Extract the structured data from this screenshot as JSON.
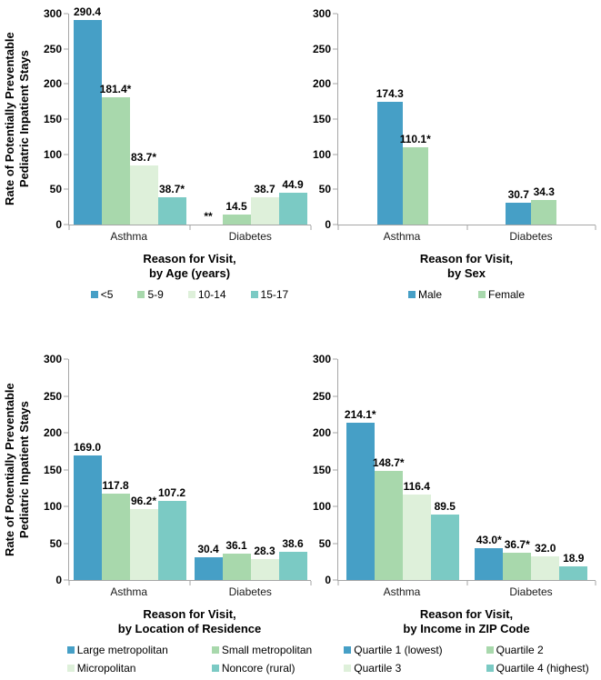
{
  "style": {
    "background": "#FFFFFF",
    "axis_color": "#A6A6A6",
    "label_color": "#000000",
    "series_colors": [
      "#469FC6",
      "#A8D8AC",
      "#DEF0DA",
      "#7BCAC4"
    ]
  },
  "chart_data": [
    {
      "type": "bar",
      "id": "by-age",
      "title": "",
      "ylabel_lines": [
        "Rate of Potentially Preventable",
        "Pediatric Inpatient Stays"
      ],
      "xlabel_lines": [
        "Reason for Visit,",
        "by Age (years)"
      ],
      "categories": [
        "Asthma",
        "Diabetes"
      ],
      "ylim": [
        0,
        300
      ],
      "yticks": [
        0,
        50,
        100,
        150,
        200,
        250,
        300
      ],
      "legend_layout": "row",
      "legend_position": "bottom",
      "grid": false,
      "series": [
        {
          "name": "<5",
          "color": "#469FC6",
          "values": [
            290.4,
            null
          ],
          "labels": [
            "290.4",
            "**"
          ]
        },
        {
          "name": "5-9",
          "color": "#A8D8AC",
          "values": [
            181.4,
            14.5
          ],
          "labels": [
            "181.4*",
            "14.5"
          ]
        },
        {
          "name": "10-14",
          "color": "#DEF0DA",
          "values": [
            83.7,
            38.7
          ],
          "labels": [
            "83.7*",
            "38.7"
          ]
        },
        {
          "name": "15-17",
          "color": "#7BCAC4",
          "values": [
            38.7,
            44.9
          ],
          "labels": [
            "38.7*",
            "44.9"
          ]
        }
      ]
    },
    {
      "type": "bar",
      "id": "by-sex",
      "title": "",
      "xlabel_lines": [
        "Reason for Visit,",
        "by Sex"
      ],
      "categories": [
        "Asthma",
        "Diabetes"
      ],
      "ylim": [
        0,
        300
      ],
      "yticks": [
        0,
        50,
        100,
        150,
        200,
        250,
        300
      ],
      "legend_layout": "row",
      "legend_position": "bottom",
      "grid": false,
      "series": [
        {
          "name": "Male",
          "color": "#469FC6",
          "values": [
            174.3,
            30.7
          ],
          "labels": [
            "174.3",
            "30.7"
          ]
        },
        {
          "name": "Female",
          "color": "#A8D8AC",
          "values": [
            110.1,
            34.3
          ],
          "labels": [
            "110.1*",
            "34.3"
          ]
        }
      ]
    },
    {
      "type": "bar",
      "id": "by-location-of-residence",
      "title": "",
      "ylabel_lines": [
        "Rate of Potentially Preventable",
        "Pediatric Inpatient Stays"
      ],
      "xlabel_lines": [
        "Reason for Visit,",
        "by Location of Residence"
      ],
      "categories": [
        "Asthma",
        "Diabetes"
      ],
      "ylim": [
        0,
        300
      ],
      "yticks": [
        0,
        50,
        100,
        150,
        200,
        250,
        300
      ],
      "legend_layout": "grid",
      "legend_position": "bottom",
      "grid": false,
      "series": [
        {
          "name": "Large metropolitan",
          "color": "#469FC6",
          "values": [
            169.0,
            30.4
          ],
          "labels": [
            "169.0",
            "30.4"
          ]
        },
        {
          "name": "Small metropolitan",
          "color": "#A8D8AC",
          "values": [
            117.8,
            36.1
          ],
          "labels": [
            "117.8",
            "36.1"
          ]
        },
        {
          "name": "Micropolitan",
          "color": "#DEF0DA",
          "values": [
            96.2,
            28.3
          ],
          "labels": [
            "96.2*",
            "28.3"
          ]
        },
        {
          "name": "Noncore (rural)",
          "color": "#7BCAC4",
          "values": [
            107.2,
            38.6
          ],
          "labels": [
            "107.2",
            "38.6"
          ]
        }
      ]
    },
    {
      "type": "bar",
      "id": "by-income-in-zip-code",
      "title": "",
      "xlabel_lines": [
        "Reason for Visit,",
        "by Income in ZIP Code"
      ],
      "categories": [
        "Asthma",
        "Diabetes"
      ],
      "ylim": [
        0,
        300
      ],
      "yticks": [
        0,
        50,
        100,
        150,
        200,
        250,
        300
      ],
      "legend_layout": "grid",
      "legend_position": "bottom",
      "grid": false,
      "series": [
        {
          "name": "Quartile 1 (lowest)",
          "color": "#469FC6",
          "values": [
            214.1,
            43.0
          ],
          "labels": [
            "214.1*",
            "43.0*"
          ]
        },
        {
          "name": "Quartile 2",
          "color": "#A8D8AC",
          "values": [
            148.7,
            36.7
          ],
          "labels": [
            "148.7*",
            "36.7*"
          ]
        },
        {
          "name": "Quartile 3",
          "color": "#DEF0DA",
          "values": [
            116.4,
            32.0
          ],
          "labels": [
            "116.4",
            "32.0"
          ]
        },
        {
          "name": "Quartile 4 (highest)",
          "color": "#7BCAC4",
          "values": [
            89.5,
            18.9
          ],
          "labels": [
            "89.5",
            "18.9"
          ]
        }
      ]
    }
  ]
}
